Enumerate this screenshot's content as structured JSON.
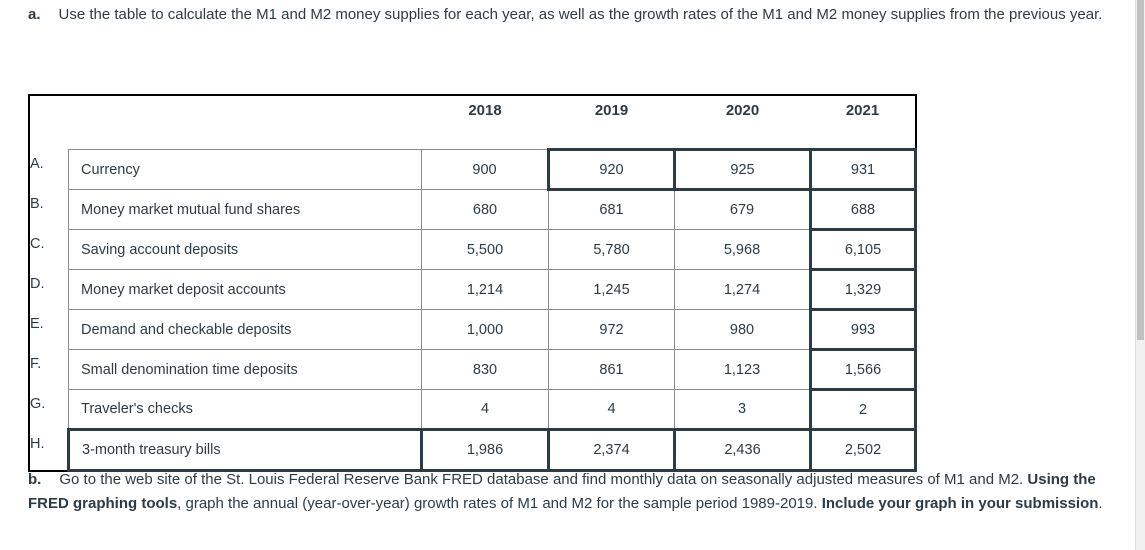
{
  "part_a": {
    "label": "a.",
    "text": "Use the table to calculate the M1 and M2 money supplies for each year, as well as the growth rates of the M1 and M2 money supplies from the previous year."
  },
  "table": {
    "years": [
      "2018",
      "2019",
      "2020",
      "2021"
    ],
    "rows": [
      {
        "letter": "A.",
        "name": "Currency",
        "values": [
          "900",
          "920",
          "925",
          "931"
        ]
      },
      {
        "letter": "B.",
        "name": "Money market mutual fund shares",
        "values": [
          "680",
          "681",
          "679",
          "688"
        ]
      },
      {
        "letter": "C.",
        "name": "Saving account deposits",
        "values": [
          "5,500",
          "5,780",
          "5,968",
          "6,105"
        ]
      },
      {
        "letter": "D.",
        "name": "Money market deposit accounts",
        "values": [
          "1,214",
          "1,245",
          "1,274",
          "1,329"
        ]
      },
      {
        "letter": "E.",
        "name": "Demand and checkable deposits",
        "values": [
          "1,000",
          "972",
          "980",
          "993"
        ]
      },
      {
        "letter": "F.",
        "name": "Small denomination time deposits",
        "values": [
          "830",
          "861",
          "1,123",
          "1,566"
        ]
      },
      {
        "letter": "G.",
        "name": "Traveler's checks",
        "values": [
          "4",
          "4",
          "3",
          "2"
        ]
      },
      {
        "letter": "H.",
        "name": "3-month treasury bills",
        "values": [
          "1,986",
          "2,374",
          "2,436",
          "2,502"
        ]
      }
    ]
  },
  "part_b": {
    "label": "b.",
    "text1": "Go to the web site of the St. Louis Federal Reserve Bank FRED database and find monthly data on seasonally adjusted measures of M1 and M2. ",
    "bold1": "Using the FRED graphing tools",
    "text2": ", graph the annual (year-over-year) growth rates of M1 and M2 for the sample period 1989-2019. ",
    "bold2": "Include your graph in your submission",
    "text3": "."
  }
}
